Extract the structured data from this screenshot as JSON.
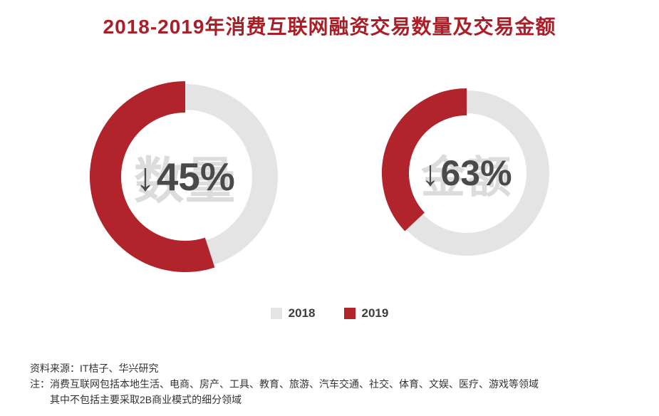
{
  "title": "2018-2019年消费互联网融资交易数量及交易金额",
  "colors": {
    "title": "#aa1f27",
    "accent": "#b2242b",
    "ring": "#e4e4e4",
    "watermark": "#dcdcdc",
    "pct": "#4a4a4a",
    "text": "#333333"
  },
  "chart_data": [
    {
      "type": "pie",
      "variant": "donut-ring",
      "title": "数量",
      "categories": [
        "2018",
        "2019"
      ],
      "values_relative": [
        100,
        55
      ],
      "arrow": "↓",
      "pct": "45%",
      "change_label": "↓45%",
      "change_percent": -45,
      "legend_position": "bottom"
    },
    {
      "type": "pie",
      "variant": "donut-ring",
      "title": "金额",
      "categories": [
        "2018",
        "2019"
      ],
      "values_relative": [
        100,
        37
      ],
      "arrow": "↓",
      "pct": "63%",
      "change_label": "↓63%",
      "change_percent": -63,
      "legend_position": "bottom"
    }
  ],
  "legend": {
    "items": [
      {
        "label": "2018",
        "color": "#e4e4e4"
      },
      {
        "label": "2019",
        "color": "#b2242b"
      }
    ]
  },
  "footer": {
    "source": "资料来源：IT桔子、华兴研究",
    "note1": "注：消费互联网包括本地生活、电商、房产、工具、教育、旅游、汽车交通、社交、体育、文娱、医疗、游戏等领域",
    "note2": "其中不包括主要采取2B商业模式的细分领域"
  }
}
